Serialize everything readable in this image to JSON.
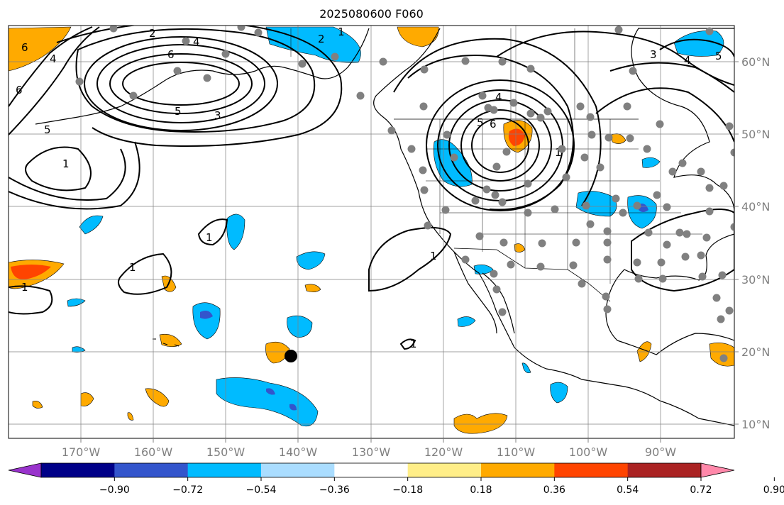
{
  "title": "2025080600 F060",
  "map": {
    "lon_ticks": [
      "170°W",
      "160°W",
      "150°W",
      "140°W",
      "130°W",
      "120°W",
      "110°W",
      "100°W",
      "90°W"
    ],
    "lat_ticks": [
      "60°N",
      "50°N",
      "40°N",
      "30°N",
      "20°N",
      "10°N"
    ],
    "grid": true,
    "contour_labels": [
      "6",
      "2",
      "4",
      "2",
      "1",
      "6",
      "4",
      "6",
      "5",
      "3",
      "5",
      "1",
      "1",
      "1",
      "1",
      "4",
      "5",
      "6",
      "1",
      "3",
      "5",
      "4",
      "1",
      "1"
    ]
  },
  "colorbar": {
    "labels": [
      "−0.90",
      "−0.72",
      "−0.54",
      "−0.36",
      "−0.18",
      "0.18",
      "0.36",
      "0.54",
      "0.72",
      "0.90"
    ],
    "colors": [
      "#9933cc",
      "#000088",
      "#3355cc",
      "#00bbff",
      "#aaddff",
      "#ffffff",
      "#ffee88",
      "#ffaa00",
      "#ff4400",
      "#aa2222",
      "#ff88aa"
    ]
  }
}
